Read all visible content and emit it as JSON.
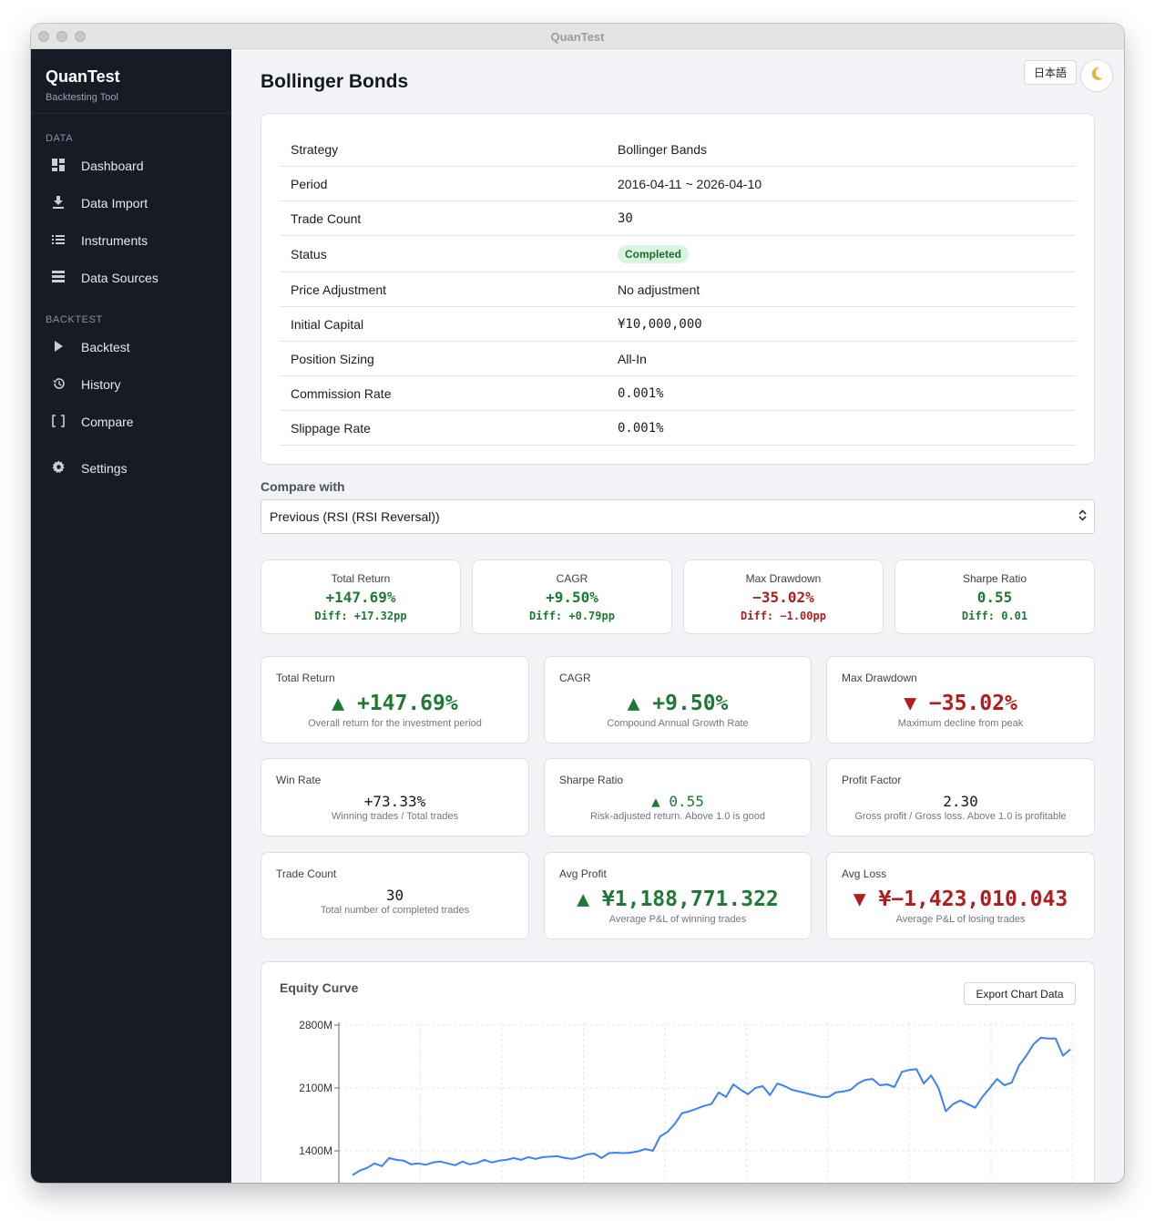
{
  "window": {
    "title": "QuanTest"
  },
  "sidebar": {
    "brand": {
      "name": "QuanTest",
      "subtitle": "Backtesting Tool"
    },
    "sections": [
      {
        "label": "DATA",
        "items": [
          {
            "label": "Dashboard",
            "icon": "dashboard-icon"
          },
          {
            "label": "Data Import",
            "icon": "download-icon"
          },
          {
            "label": "Instruments",
            "icon": "list-icon"
          },
          {
            "label": "Data Sources",
            "icon": "storage-icon"
          }
        ]
      },
      {
        "label": "BACKTEST",
        "items": [
          {
            "label": "Backtest",
            "icon": "play-icon"
          },
          {
            "label": "History",
            "icon": "history-icon"
          },
          {
            "label": "Compare",
            "icon": "compare-icon"
          }
        ]
      }
    ],
    "settings": {
      "label": "Settings",
      "icon": "gear-icon"
    }
  },
  "header": {
    "title": "Bollinger Bonds",
    "language_button": "日本語",
    "theme_icon": "moon-icon"
  },
  "details": [
    {
      "key": "Strategy",
      "value": "Bollinger Bands"
    },
    {
      "key": "Period",
      "value": "2016-04-11 ~ 2026-04-10"
    },
    {
      "key": "Trade Count",
      "value": "30"
    },
    {
      "key": "Status",
      "value": "Completed"
    },
    {
      "key": "Price Adjustment",
      "value": "No adjustment"
    },
    {
      "key": "Initial Capital",
      "value": "¥10,000,000"
    },
    {
      "key": "Position Sizing",
      "value": "All-In"
    },
    {
      "key": "Commission Rate",
      "value": "0.001%"
    },
    {
      "key": "Slippage Rate",
      "value": "0.001%"
    }
  ],
  "compare": {
    "label": "Compare with",
    "selected": "Previous (RSI (RSI Reversal))"
  },
  "comparison_cards": [
    {
      "title": "Total Return",
      "value": "+147.69%",
      "diff": "Diff: +17.32pp",
      "tone": "pos"
    },
    {
      "title": "CAGR",
      "value": "+9.50%",
      "diff": "Diff: +0.79pp",
      "tone": "pos"
    },
    {
      "title": "Max Drawdown",
      "value": "−35.02%",
      "diff": "Diff: −1.00pp",
      "tone": "neg"
    },
    {
      "title": "Sharpe Ratio",
      "value": "0.55",
      "diff": "Diff: 0.01",
      "tone": "pos"
    }
  ],
  "metrics": [
    {
      "title": "Total Return",
      "value": "▲ +147.69%",
      "desc": "Overall return for the investment period",
      "tone": "pos",
      "size": "big"
    },
    {
      "title": "CAGR",
      "value": "▲ +9.50%",
      "desc": "Compound Annual Growth Rate",
      "tone": "pos",
      "size": "big"
    },
    {
      "title": "Max Drawdown",
      "value": "▼ −35.02%",
      "desc": "Maximum decline from peak",
      "tone": "neg",
      "size": "big"
    },
    {
      "title": "Win Rate",
      "value": "+73.33%",
      "desc": "Winning trades / Total trades",
      "tone": "dark",
      "size": "small"
    },
    {
      "title": "Sharpe Ratio",
      "value": "▲ 0.55",
      "desc": "Risk-adjusted return. Above 1.0 is good",
      "tone": "pos",
      "size": "small"
    },
    {
      "title": "Profit Factor",
      "value": "2.30",
      "desc": "Gross profit / Gross loss. Above 1.0 is profitable",
      "tone": "dark",
      "size": "small"
    },
    {
      "title": "Trade Count",
      "value": "30",
      "desc": "Total number of completed trades",
      "tone": "dark",
      "size": "small"
    },
    {
      "title": "Avg Profit",
      "value": "▲ ¥1,188,771.322",
      "desc": "Average P&L of winning trades",
      "tone": "pos",
      "size": "big"
    },
    {
      "title": "Avg Loss",
      "value": "▼ ¥−1,423,010.043",
      "desc": "Average P&L of losing trades",
      "tone": "neg",
      "size": "big"
    }
  ],
  "equity_chart": {
    "title": "Equity Curve",
    "export_label": "Export Chart Data"
  },
  "colors": {
    "positive": "#1d7a34",
    "negative": "#b11d1d",
    "line": "#3b82f6",
    "sidebar": "#161b25"
  },
  "chart_data": {
    "type": "line",
    "title": "Equity Curve",
    "y_ticks": [
      "2800M",
      "2100M",
      "1400M"
    ],
    "y_tick_values": [
      2800,
      2100,
      1400
    ],
    "y_unit": "M",
    "series": [
      {
        "values": [
          1130,
          1180,
          1210,
          1260,
          1230,
          1320,
          1300,
          1290,
          1250,
          1260,
          1245,
          1270,
          1280,
          1260,
          1240,
          1280,
          1250,
          1265,
          1300,
          1270,
          1290,
          1300,
          1320,
          1300,
          1330,
          1310,
          1330,
          1335,
          1340,
          1320,
          1310,
          1330,
          1360,
          1370,
          1320,
          1375,
          1380,
          1375,
          1380,
          1395,
          1420,
          1400,
          1560,
          1610,
          1700,
          1820,
          1840,
          1870,
          1900,
          1920,
          2050,
          2000,
          2140,
          2080,
          2030,
          2100,
          2120,
          2020,
          2150,
          2120,
          2080,
          2060,
          2040,
          2020,
          2000,
          2000,
          2050,
          2060,
          2080,
          2150,
          2190,
          2200,
          2130,
          2140,
          2110,
          2280,
          2300,
          2310,
          2150,
          2240,
          2100,
          1840,
          1920,
          1960,
          1920,
          1880,
          2000,
          2100,
          2200,
          2130,
          2160,
          2350,
          2460,
          2590,
          2660,
          2650,
          2650,
          2460,
          2530
        ]
      }
    ]
  }
}
